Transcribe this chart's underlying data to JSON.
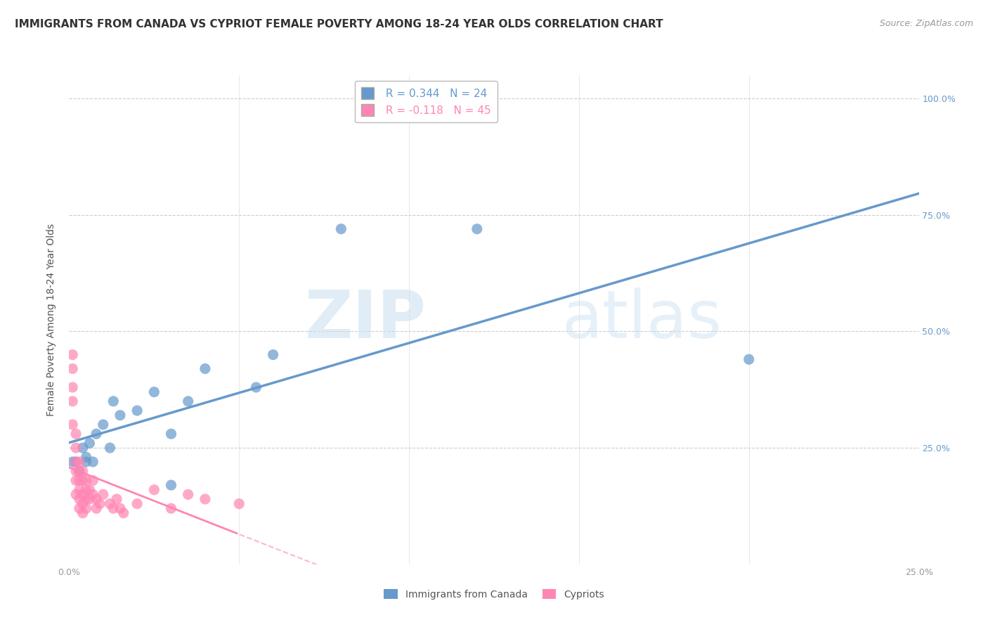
{
  "title": "IMMIGRANTS FROM CANADA VS CYPRIOT FEMALE POVERTY AMONG 18-24 YEAR OLDS CORRELATION CHART",
  "source": "Source: ZipAtlas.com",
  "ylabel": "Female Poverty Among 18-24 Year Olds",
  "xlim": [
    0.0,
    0.25
  ],
  "ylim": [
    0.0,
    1.05
  ],
  "x_ticks": [
    0.0,
    0.05,
    0.1,
    0.15,
    0.2,
    0.25
  ],
  "x_tick_labels": [
    "0.0%",
    "",
    "",
    "",
    "",
    "25.0%"
  ],
  "y_ticks": [
    0.0,
    0.25,
    0.5,
    0.75,
    1.0
  ],
  "canada_color": "#6699cc",
  "cypriot_color": "#ff85b3",
  "canada_r": 0.344,
  "canada_n": 24,
  "cypriot_r": -0.118,
  "cypriot_n": 45,
  "legend_label_canada": "Immigrants from Canada",
  "legend_label_cypriot": "Cypriots",
  "watermark_zip": "ZIP",
  "watermark_atlas": "atlas",
  "right_tick_color": "#6699cc",
  "background_color": "#ffffff",
  "grid_color": "#cccccc",
  "title_color": "#333333",
  "source_color": "#999999",
  "tick_color": "#999999",
  "ylabel_color": "#555555",
  "canada_x": [
    0.001,
    0.002,
    0.003,
    0.004,
    0.005,
    0.005,
    0.006,
    0.007,
    0.008,
    0.01,
    0.012,
    0.013,
    0.015,
    0.02,
    0.025,
    0.03,
    0.04,
    0.055,
    0.06,
    0.08,
    0.12,
    0.2,
    0.03,
    0.035
  ],
  "canada_y": [
    0.22,
    0.22,
    0.2,
    0.25,
    0.22,
    0.23,
    0.26,
    0.22,
    0.28,
    0.3,
    0.25,
    0.35,
    0.32,
    0.33,
    0.37,
    0.28,
    0.42,
    0.38,
    0.45,
    0.72,
    0.72,
    0.44,
    0.17,
    0.35
  ],
  "cypriot_x": [
    0.001,
    0.001,
    0.001,
    0.001,
    0.001,
    0.002,
    0.002,
    0.002,
    0.002,
    0.002,
    0.002,
    0.003,
    0.003,
    0.003,
    0.003,
    0.003,
    0.003,
    0.004,
    0.004,
    0.004,
    0.004,
    0.004,
    0.005,
    0.005,
    0.005,
    0.005,
    0.006,
    0.006,
    0.007,
    0.007,
    0.008,
    0.008,
    0.009,
    0.01,
    0.012,
    0.013,
    0.014,
    0.015,
    0.016,
    0.02,
    0.025,
    0.03,
    0.035,
    0.04,
    0.05
  ],
  "cypriot_y": [
    0.45,
    0.42,
    0.38,
    0.35,
    0.3,
    0.28,
    0.25,
    0.22,
    0.2,
    0.18,
    0.15,
    0.22,
    0.2,
    0.18,
    0.16,
    0.14,
    0.12,
    0.2,
    0.18,
    0.15,
    0.13,
    0.11,
    0.18,
    0.16,
    0.14,
    0.12,
    0.16,
    0.14,
    0.18,
    0.15,
    0.14,
    0.12,
    0.13,
    0.15,
    0.13,
    0.12,
    0.14,
    0.12,
    0.11,
    0.13,
    0.16,
    0.12,
    0.15,
    0.14,
    0.13
  ],
  "title_fontsize": 11,
  "tick_fontsize": 9,
  "legend_fontsize": 11,
  "source_fontsize": 9,
  "ylabel_fontsize": 10
}
